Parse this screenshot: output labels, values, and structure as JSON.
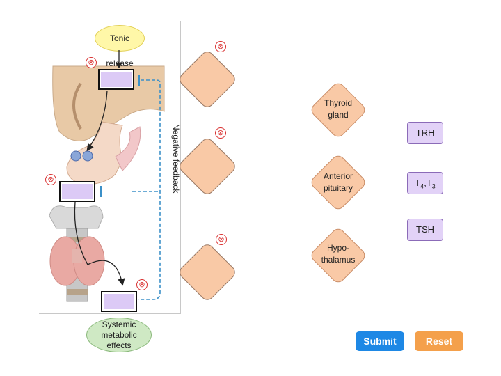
{
  "diagram": {
    "tonic_release": "Tonic release",
    "feedback_label": "Negative feedback",
    "effects_label": "Systemic metabolic effects",
    "remove_symbol": "⊗"
  },
  "answer_options": [
    {
      "id": "thyroid",
      "label": "Thyroid gland"
    },
    {
      "id": "anterior",
      "label": "Anterior pituitary"
    },
    {
      "id": "hypothalamus",
      "label": "Hypo- thalamus"
    }
  ],
  "chips": [
    {
      "id": "trh",
      "label": "TRH"
    },
    {
      "id": "t4t3",
      "label": "T4,T3"
    },
    {
      "id": "tsh",
      "label": "TSH"
    }
  ],
  "buttons": {
    "submit": "Submit",
    "reset": "Reset",
    "submit_color": "#1e88e5",
    "reset_color": "#f4a04b"
  }
}
